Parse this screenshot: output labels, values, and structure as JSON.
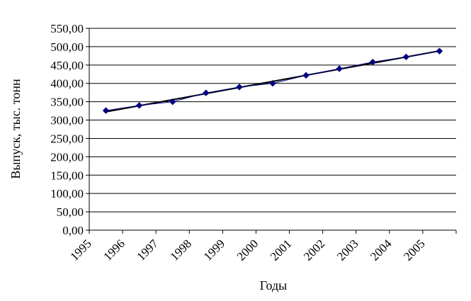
{
  "chart_data": {
    "type": "line",
    "title": "",
    "xlabel": "Годы",
    "ylabel": "Выпуск, тыс. тонн",
    "categories": [
      "1995",
      "1996",
      "1997",
      "1998",
      "1999",
      "2000",
      "2001",
      "2002",
      "2003",
      "2004",
      "2005"
    ],
    "y_tick_labels": [
      "0,00",
      "50,00",
      "100,00",
      "150,00",
      "200,00",
      "250,00",
      "300,00",
      "350,00",
      "400,00",
      "450,00",
      "500,00",
      "550,00"
    ],
    "ylim": [
      0,
      550
    ],
    "y_step": 50,
    "grid": true,
    "legend": "none",
    "series": [
      {
        "values": [
          326,
          340,
          350,
          374,
          390,
          400,
          422,
          440,
          458,
          472,
          488
        ],
        "color": "#000080",
        "marker": "diamond"
      }
    ],
    "trendline": {
      "type": "linear",
      "color": "#000000"
    }
  }
}
